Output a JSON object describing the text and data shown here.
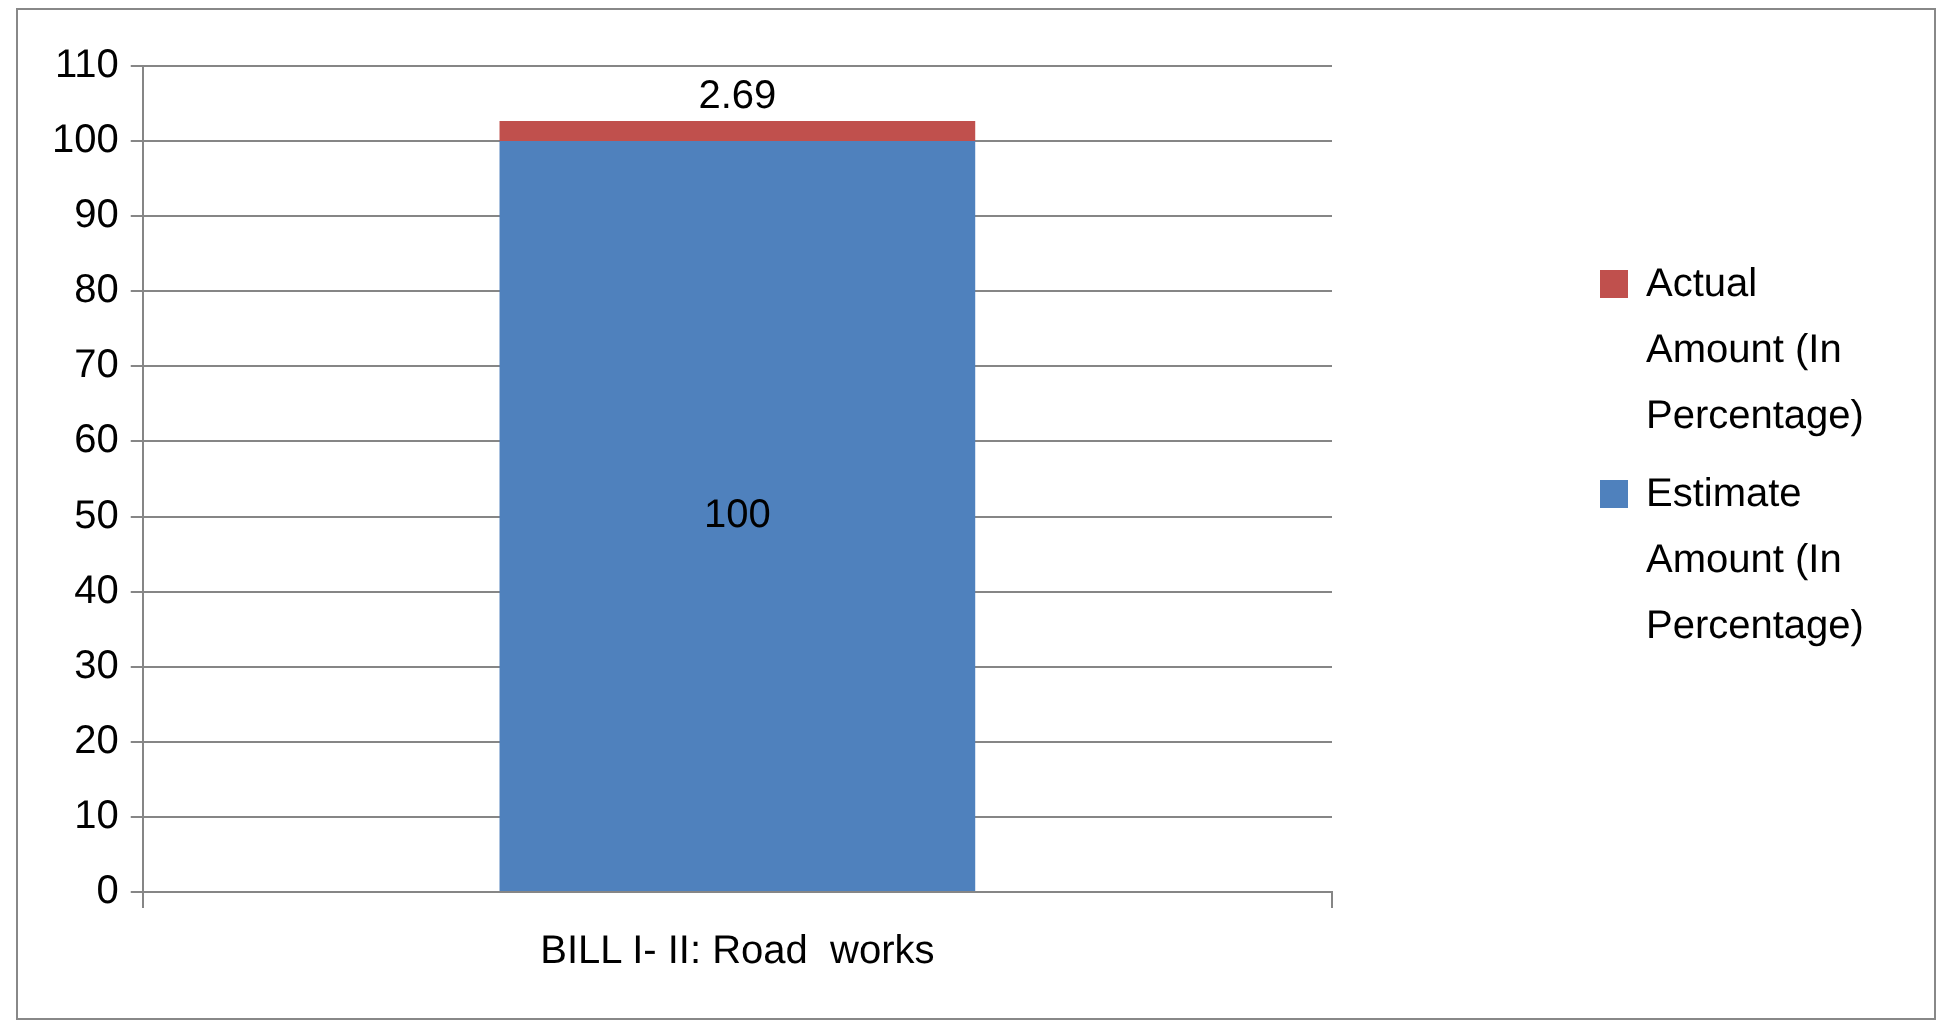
{
  "chart_data": {
    "type": "bar",
    "stacked": true,
    "categories": [
      "BILL I- II: Road  works"
    ],
    "series": [
      {
        "name": "Estimate Amount (In Percentage)",
        "color": "#4f81bd",
        "values": [
          100
        ]
      },
      {
        "name": "Actual Amount (In Percentage)",
        "color": "#c0504d",
        "values": [
          2.69
        ]
      }
    ],
    "ylim": [
      0,
      110
    ],
    "yticks": [
      0,
      10,
      20,
      30,
      40,
      50,
      60,
      70,
      80,
      90,
      100,
      110
    ],
    "grid": "y",
    "legend": "right",
    "data_labels": true
  }
}
